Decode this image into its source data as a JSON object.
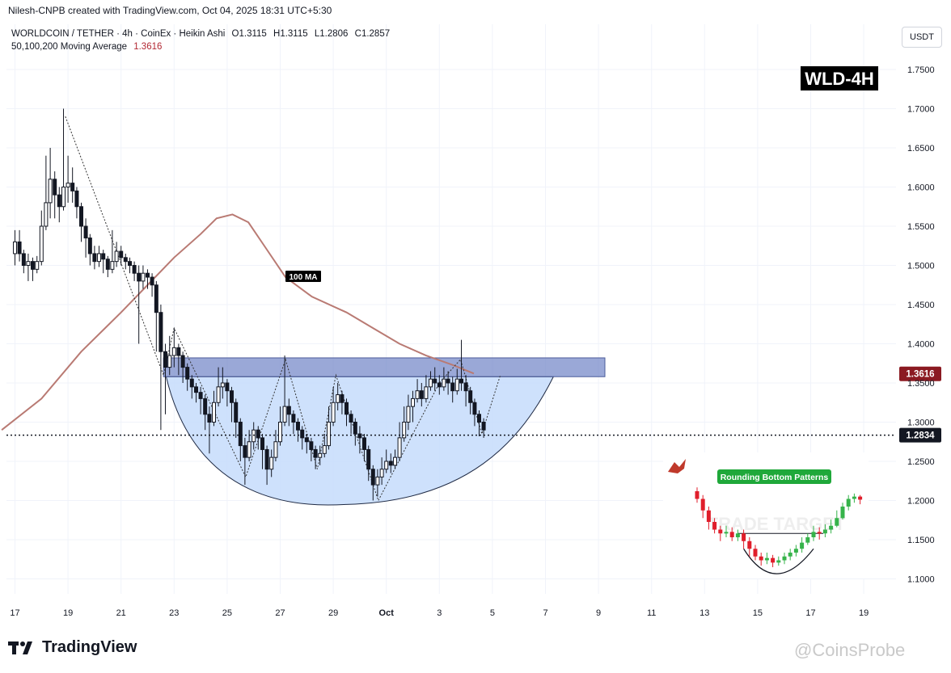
{
  "header": {
    "author_line": "Nilesh-CNPB created with TradingView.com, Oct 04, 2025 18:31 UTC+5:30"
  },
  "legend": {
    "symbol": "WORLDCOIN / TETHER · 4h · CoinEx · Heikin Ashi",
    "open": "O1.3115",
    "high": "H1.3115",
    "low": "L1.2806",
    "close": "C1.2857",
    "ma_label": "50,100,200 Moving Average",
    "ma_value": "1.3616"
  },
  "currency_button": "USDT",
  "brand": {
    "name": "TradingView",
    "icon": "tradingview-logo-icon"
  },
  "watermark": "@CoinsProbe",
  "colors": {
    "up": "#089981",
    "down": "#f23645",
    "candle": "#131722",
    "ma": "#b97a73",
    "zone": "#6f83c6",
    "bowl": "#c5dcfb",
    "ma_tag": "#8b1a22"
  },
  "chart_data": {
    "type": "candlestick",
    "title": "WLD-4H",
    "yticks": [
      "1.7500",
      "1.7000",
      "1.6500",
      "1.6000",
      "1.5500",
      "1.5000",
      "1.4500",
      "1.4000",
      "1.3500",
      "1.3000",
      "1.2500",
      "1.2000",
      "1.1500",
      "1.1000"
    ],
    "ylim": [
      1.08,
      1.78
    ],
    "xticks": [
      "17",
      "19",
      "21",
      "23",
      "25",
      "27",
      "29",
      "Oct",
      "3",
      "5",
      "7",
      "9",
      "11",
      "13",
      "15",
      "17",
      "19"
    ],
    "xlim_days": [
      16.5,
      50.0
    ],
    "current_price": {
      "value": 1.2834,
      "label": "1.2834"
    },
    "ma_price": {
      "value": 1.3616,
      "label": "1.3616"
    },
    "resistance_zone": {
      "low": 1.358,
      "high": 1.382
    },
    "annotations": {
      "ma_label": "100 MA",
      "inset_title": "Rounding Bottom Patterns",
      "inset_watermark": "TRADE TARGET"
    },
    "candles": [
      [
        17.0,
        1.515,
        1.53,
        1.545,
        1.5
      ],
      [
        17.17,
        1.53,
        1.515,
        1.545,
        1.505
      ],
      [
        17.33,
        1.515,
        1.5,
        1.52,
        1.49
      ],
      [
        17.5,
        1.5,
        1.505,
        1.515,
        1.48
      ],
      [
        17.67,
        1.505,
        1.495,
        1.51,
        1.48
      ],
      [
        17.83,
        1.495,
        1.505,
        1.512,
        1.49
      ],
      [
        18.0,
        1.505,
        1.55,
        1.57,
        1.5
      ],
      [
        18.17,
        1.55,
        1.58,
        1.64,
        1.545
      ],
      [
        18.33,
        1.58,
        1.61,
        1.65,
        1.56
      ],
      [
        18.5,
        1.61,
        1.59,
        1.62,
        1.56
      ],
      [
        18.67,
        1.59,
        1.575,
        1.6,
        1.555
      ],
      [
        18.83,
        1.575,
        1.6,
        1.7,
        1.57
      ],
      [
        19.0,
        1.6,
        1.605,
        1.64,
        1.58
      ],
      [
        19.17,
        1.605,
        1.595,
        1.625,
        1.58
      ],
      [
        19.33,
        1.595,
        1.575,
        1.6,
        1.56
      ],
      [
        19.5,
        1.575,
        1.55,
        1.58,
        1.53
      ],
      [
        19.67,
        1.55,
        1.535,
        1.56,
        1.51
      ],
      [
        19.83,
        1.535,
        1.515,
        1.54,
        1.5
      ],
      [
        20.0,
        1.515,
        1.505,
        1.525,
        1.495
      ],
      [
        20.17,
        1.505,
        1.515,
        1.525,
        1.498
      ],
      [
        20.33,
        1.515,
        1.508,
        1.52,
        1.49
      ],
      [
        20.5,
        1.508,
        1.495,
        1.512,
        1.485
      ],
      [
        20.67,
        1.495,
        1.505,
        1.545,
        1.49
      ],
      [
        20.83,
        1.505,
        1.518,
        1.53,
        1.498
      ],
      [
        21.0,
        1.518,
        1.51,
        1.525,
        1.5
      ],
      [
        21.17,
        1.51,
        1.505,
        1.515,
        1.495
      ],
      [
        21.33,
        1.505,
        1.5,
        1.51,
        1.49
      ],
      [
        21.5,
        1.5,
        1.49,
        1.505,
        1.48
      ],
      [
        21.67,
        1.49,
        1.48,
        1.5,
        1.4
      ],
      [
        21.83,
        1.48,
        1.49,
        1.5,
        1.47
      ],
      [
        22.0,
        1.49,
        1.485,
        1.495,
        1.47
      ],
      [
        22.17,
        1.485,
        1.475,
        1.49,
        1.46
      ],
      [
        22.33,
        1.475,
        1.44,
        1.48,
        1.39
      ],
      [
        22.5,
        1.44,
        1.39,
        1.45,
        1.29
      ],
      [
        22.67,
        1.39,
        1.37,
        1.4,
        1.31
      ],
      [
        22.83,
        1.37,
        1.385,
        1.41,
        1.36
      ],
      [
        23.0,
        1.385,
        1.395,
        1.42,
        1.37
      ],
      [
        23.17,
        1.395,
        1.385,
        1.4,
        1.36
      ],
      [
        23.33,
        1.385,
        1.37,
        1.39,
        1.35
      ],
      [
        23.5,
        1.37,
        1.355,
        1.375,
        1.34
      ],
      [
        23.67,
        1.355,
        1.345,
        1.36,
        1.33
      ],
      [
        23.83,
        1.345,
        1.338,
        1.35,
        1.325
      ],
      [
        24.0,
        1.338,
        1.33,
        1.345,
        1.31
      ],
      [
        24.17,
        1.33,
        1.31,
        1.335,
        1.29
      ],
      [
        24.33,
        1.31,
        1.3,
        1.32,
        1.26
      ],
      [
        24.5,
        1.3,
        1.325,
        1.34,
        1.295
      ],
      [
        24.67,
        1.325,
        1.345,
        1.37,
        1.32
      ],
      [
        24.83,
        1.345,
        1.35,
        1.37,
        1.33
      ],
      [
        25.0,
        1.35,
        1.34,
        1.355,
        1.32
      ],
      [
        25.17,
        1.34,
        1.325,
        1.345,
        1.3
      ],
      [
        25.33,
        1.325,
        1.3,
        1.33,
        1.28
      ],
      [
        25.5,
        1.3,
        1.27,
        1.305,
        1.25
      ],
      [
        25.67,
        1.27,
        1.255,
        1.28,
        1.22
      ],
      [
        25.83,
        1.255,
        1.275,
        1.29,
        1.25
      ],
      [
        26.0,
        1.275,
        1.29,
        1.3,
        1.265
      ],
      [
        26.17,
        1.29,
        1.28,
        1.295,
        1.265
      ],
      [
        26.33,
        1.28,
        1.265,
        1.285,
        1.24
      ],
      [
        26.5,
        1.265,
        1.24,
        1.27,
        1.22
      ],
      [
        26.67,
        1.24,
        1.255,
        1.265,
        1.23
      ],
      [
        26.83,
        1.255,
        1.275,
        1.29,
        1.25
      ],
      [
        27.0,
        1.275,
        1.3,
        1.32,
        1.27
      ],
      [
        27.17,
        1.3,
        1.32,
        1.385,
        1.295
      ],
      [
        27.33,
        1.32,
        1.31,
        1.33,
        1.295
      ],
      [
        27.5,
        1.31,
        1.3,
        1.315,
        1.285
      ],
      [
        27.67,
        1.3,
        1.29,
        1.305,
        1.275
      ],
      [
        27.83,
        1.29,
        1.28,
        1.295,
        1.265
      ],
      [
        28.0,
        1.28,
        1.275,
        1.285,
        1.26
      ],
      [
        28.17,
        1.275,
        1.265,
        1.28,
        1.25
      ],
      [
        28.33,
        1.265,
        1.255,
        1.27,
        1.24
      ],
      [
        28.5,
        1.255,
        1.26,
        1.27,
        1.245
      ],
      [
        28.67,
        1.26,
        1.27,
        1.285,
        1.255
      ],
      [
        28.83,
        1.27,
        1.3,
        1.32,
        1.265
      ],
      [
        29.0,
        1.3,
        1.325,
        1.345,
        1.295
      ],
      [
        29.17,
        1.325,
        1.335,
        1.35,
        1.315
      ],
      [
        29.33,
        1.335,
        1.325,
        1.34,
        1.31
      ],
      [
        29.5,
        1.325,
        1.31,
        1.33,
        1.295
      ],
      [
        29.67,
        1.31,
        1.3,
        1.315,
        1.285
      ],
      [
        29.83,
        1.3,
        1.285,
        1.305,
        1.27
      ],
      [
        30.0,
        1.285,
        1.28,
        1.295,
        1.26
      ],
      [
        30.17,
        1.28,
        1.265,
        1.285,
        1.25
      ],
      [
        30.33,
        1.265,
        1.24,
        1.27,
        1.225
      ],
      [
        30.5,
        1.24,
        1.22,
        1.245,
        1.2
      ],
      [
        30.67,
        1.22,
        1.23,
        1.24,
        1.205
      ],
      [
        30.83,
        1.23,
        1.24,
        1.255,
        1.22
      ],
      [
        31.0,
        1.24,
        1.25,
        1.265,
        1.235
      ],
      [
        31.17,
        1.25,
        1.245,
        1.26,
        1.235
      ],
      [
        31.33,
        1.245,
        1.255,
        1.265,
        1.24
      ],
      [
        31.5,
        1.255,
        1.28,
        1.3,
        1.25
      ],
      [
        31.67,
        1.28,
        1.3,
        1.32,
        1.275
      ],
      [
        31.83,
        1.3,
        1.32,
        1.335,
        1.29
      ],
      [
        32.0,
        1.32,
        1.33,
        1.34,
        1.3
      ],
      [
        32.17,
        1.33,
        1.34,
        1.355,
        1.325
      ],
      [
        32.33,
        1.34,
        1.33,
        1.35,
        1.32
      ],
      [
        32.5,
        1.33,
        1.345,
        1.36,
        1.325
      ],
      [
        32.67,
        1.345,
        1.355,
        1.365,
        1.34
      ],
      [
        32.83,
        1.355,
        1.35,
        1.37,
        1.34
      ],
      [
        33.0,
        1.35,
        1.345,
        1.36,
        1.335
      ],
      [
        33.17,
        1.345,
        1.355,
        1.37,
        1.34
      ],
      [
        33.33,
        1.355,
        1.35,
        1.365,
        1.335
      ],
      [
        33.5,
        1.35,
        1.34,
        1.358,
        1.325
      ],
      [
        33.67,
        1.34,
        1.355,
        1.368,
        1.335
      ],
      [
        33.83,
        1.355,
        1.35,
        1.405,
        1.34
      ],
      [
        34.0,
        1.35,
        1.34,
        1.36,
        1.32
      ],
      [
        34.17,
        1.34,
        1.325,
        1.345,
        1.31
      ],
      [
        34.33,
        1.325,
        1.31,
        1.33,
        1.295
      ],
      [
        34.5,
        1.31,
        1.3,
        1.315,
        1.282
      ],
      [
        34.67,
        1.3,
        1.29,
        1.305,
        1.28
      ]
    ],
    "ma100": [
      [
        16.5,
        1.29
      ],
      [
        18,
        1.33
      ],
      [
        19.5,
        1.39
      ],
      [
        21,
        1.44
      ],
      [
        22,
        1.475
      ],
      [
        23,
        1.51
      ],
      [
        24,
        1.54
      ],
      [
        24.6,
        1.56
      ],
      [
        25.2,
        1.565
      ],
      [
        25.8,
        1.555
      ],
      [
        26.4,
        1.525
      ],
      [
        27.2,
        1.485
      ],
      [
        28.2,
        1.46
      ],
      [
        29.5,
        1.44
      ],
      [
        30.5,
        1.42
      ],
      [
        31.5,
        1.4
      ],
      [
        32.5,
        1.385
      ],
      [
        33.5,
        1.373
      ],
      [
        34.3,
        1.362
      ]
    ],
    "swing_line": [
      [
        18.9,
        1.69
      ],
      [
        22.6,
        1.36
      ],
      [
        23.0,
        1.42
      ],
      [
        25.7,
        1.23
      ],
      [
        27.2,
        1.38
      ],
      [
        28.4,
        1.24
      ],
      [
        29.1,
        1.36
      ],
      [
        30.7,
        1.2
      ],
      [
        33.0,
        1.35
      ],
      [
        33.8,
        1.38
      ],
      [
        34.6,
        1.285
      ],
      [
        35.3,
        1.36
      ]
    ],
    "bowl": {
      "x_start": 22.7,
      "x_end": 37.3,
      "x_bottom": 29.5,
      "bottom": 1.195,
      "rim": 1.358
    },
    "inset_candles": [
      [
        -0.5,
        1.215,
        1.205,
        1.22,
        1.2
      ],
      [
        -0.35,
        1.205,
        1.19,
        1.21,
        1.18
      ],
      [
        -0.2,
        1.19,
        1.175,
        1.195,
        1.165
      ],
      [
        -0.05,
        1.175,
        1.165,
        1.18,
        1.16
      ],
      [
        0.1,
        1.165,
        1.16,
        1.17,
        1.15
      ],
      [
        0.25,
        1.16,
        1.162,
        1.17,
        1.155
      ],
      [
        0.4,
        1.162,
        1.155,
        1.168,
        1.15
      ],
      [
        0.55,
        1.155,
        1.16,
        1.165,
        1.15
      ],
      [
        0.7,
        1.16,
        1.15,
        1.165,
        1.14
      ],
      [
        0.85,
        1.15,
        1.14,
        1.155,
        1.13
      ],
      [
        1.0,
        1.14,
        1.13,
        1.145,
        1.125
      ],
      [
        1.15,
        1.13,
        1.125,
        1.135,
        1.118
      ],
      [
        1.3,
        1.125,
        1.128,
        1.135,
        1.12
      ],
      [
        1.45,
        1.128,
        1.122,
        1.132,
        1.116
      ],
      [
        1.6,
        1.122,
        1.125,
        1.13,
        1.118
      ],
      [
        1.75,
        1.125,
        1.13,
        1.135,
        1.12
      ],
      [
        1.9,
        1.13,
        1.135,
        1.14,
        1.125
      ],
      [
        2.05,
        1.135,
        1.14,
        1.145,
        1.13
      ],
      [
        2.2,
        1.14,
        1.148,
        1.155,
        1.135
      ],
      [
        2.35,
        1.148,
        1.155,
        1.16,
        1.145
      ],
      [
        2.5,
        1.155,
        1.162,
        1.17,
        1.15
      ],
      [
        2.65,
        1.162,
        1.16,
        1.168,
        1.152
      ],
      [
        2.8,
        1.16,
        1.165,
        1.172,
        1.155
      ],
      [
        2.95,
        1.165,
        1.17,
        1.178,
        1.16
      ],
      [
        3.1,
        1.17,
        1.18,
        1.19,
        1.168
      ],
      [
        3.25,
        1.18,
        1.195,
        1.2,
        1.178
      ],
      [
        3.4,
        1.195,
        1.205,
        1.21,
        1.19
      ],
      [
        3.55,
        1.205,
        1.208,
        1.212,
        1.2
      ],
      [
        3.7,
        1.208,
        1.204,
        1.21,
        1.198
      ]
    ]
  }
}
